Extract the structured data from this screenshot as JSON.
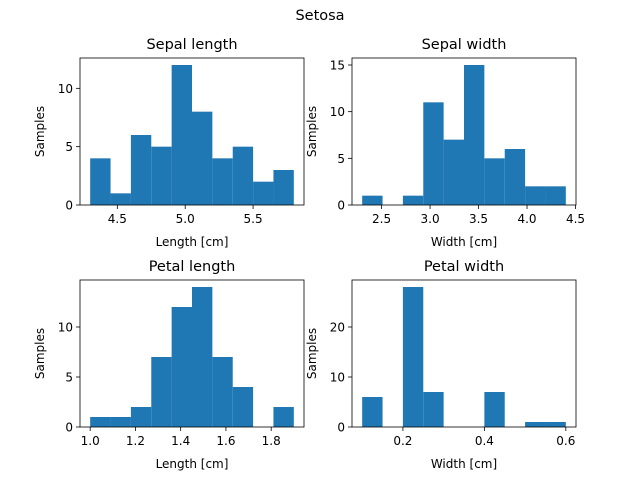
{
  "figure": {
    "suptitle": "Setosa"
  },
  "chart_data": [
    {
      "type": "bar",
      "title": "Sepal length",
      "xlabel": "Length [cm]",
      "ylabel": "Samples",
      "bin_edges": [
        4.3,
        4.45,
        4.6,
        4.75,
        4.9,
        5.05,
        5.2,
        5.35,
        5.5,
        5.65,
        5.8
      ],
      "values": [
        4,
        1,
        6,
        5,
        12,
        8,
        4,
        5,
        2,
        3
      ],
      "xlim": [
        4.225,
        5.875
      ],
      "ylim": [
        0,
        12.6
      ],
      "xticks": [
        4.5,
        5.0,
        5.5
      ],
      "xtick_labels": [
        "4.5",
        "5.0",
        "5.5"
      ],
      "yticks": [
        0,
        5,
        10
      ],
      "ytick_labels": [
        "0",
        "5",
        "10"
      ],
      "color": "#1f77b4"
    },
    {
      "type": "bar",
      "title": "Sepal width",
      "xlabel": "Width [cm]",
      "ylabel": "Samples",
      "bin_edges": [
        2.3,
        2.51,
        2.72,
        2.93,
        3.14,
        3.35,
        3.56,
        3.77,
        3.98,
        4.19,
        4.4
      ],
      "values": [
        1,
        0,
        1,
        11,
        7,
        15,
        5,
        6,
        2,
        2
      ],
      "xlim": [
        2.195,
        4.505
      ],
      "ylim": [
        0,
        15.75
      ],
      "xticks": [
        2.5,
        3.0,
        3.5,
        4.0,
        4.5
      ],
      "xtick_labels": [
        "2.5",
        "3.0",
        "3.5",
        "4.0",
        "4.5"
      ],
      "yticks": [
        0,
        5,
        10,
        15
      ],
      "ytick_labels": [
        "0",
        "5",
        "10",
        "15"
      ],
      "color": "#1f77b4"
    },
    {
      "type": "bar",
      "title": "Petal length",
      "xlabel": "Length [cm]",
      "ylabel": "Samples",
      "bin_edges": [
        1.0,
        1.09,
        1.18,
        1.27,
        1.36,
        1.45,
        1.54,
        1.63,
        1.72,
        1.81,
        1.9
      ],
      "values": [
        1,
        1,
        2,
        7,
        12,
        14,
        7,
        4,
        0,
        2
      ],
      "xlim": [
        0.955,
        1.945
      ],
      "ylim": [
        0,
        14.7
      ],
      "xticks": [
        1.0,
        1.2,
        1.4,
        1.6,
        1.8
      ],
      "xtick_labels": [
        "1.0",
        "1.2",
        "1.4",
        "1.6",
        "1.8"
      ],
      "yticks": [
        0,
        5,
        10
      ],
      "ytick_labels": [
        "0",
        "5",
        "10"
      ],
      "color": "#1f77b4"
    },
    {
      "type": "bar",
      "title": "Petal width",
      "xlabel": "Width [cm]",
      "ylabel": "Samples",
      "bin_edges": [
        0.1,
        0.15,
        0.2,
        0.25,
        0.3,
        0.35,
        0.4,
        0.45,
        0.5,
        0.55,
        0.6
      ],
      "values": [
        6,
        0,
        28,
        7,
        0,
        0,
        7,
        0,
        1,
        1
      ],
      "xlim": [
        0.075,
        0.625
      ],
      "ylim": [
        0,
        29.4
      ],
      "xticks": [
        0.2,
        0.4,
        0.6
      ],
      "xtick_labels": [
        "0.2",
        "0.4",
        "0.6"
      ],
      "yticks": [
        0,
        10,
        20
      ],
      "ytick_labels": [
        "0",
        "10",
        "20"
      ],
      "color": "#1f77b4"
    }
  ]
}
